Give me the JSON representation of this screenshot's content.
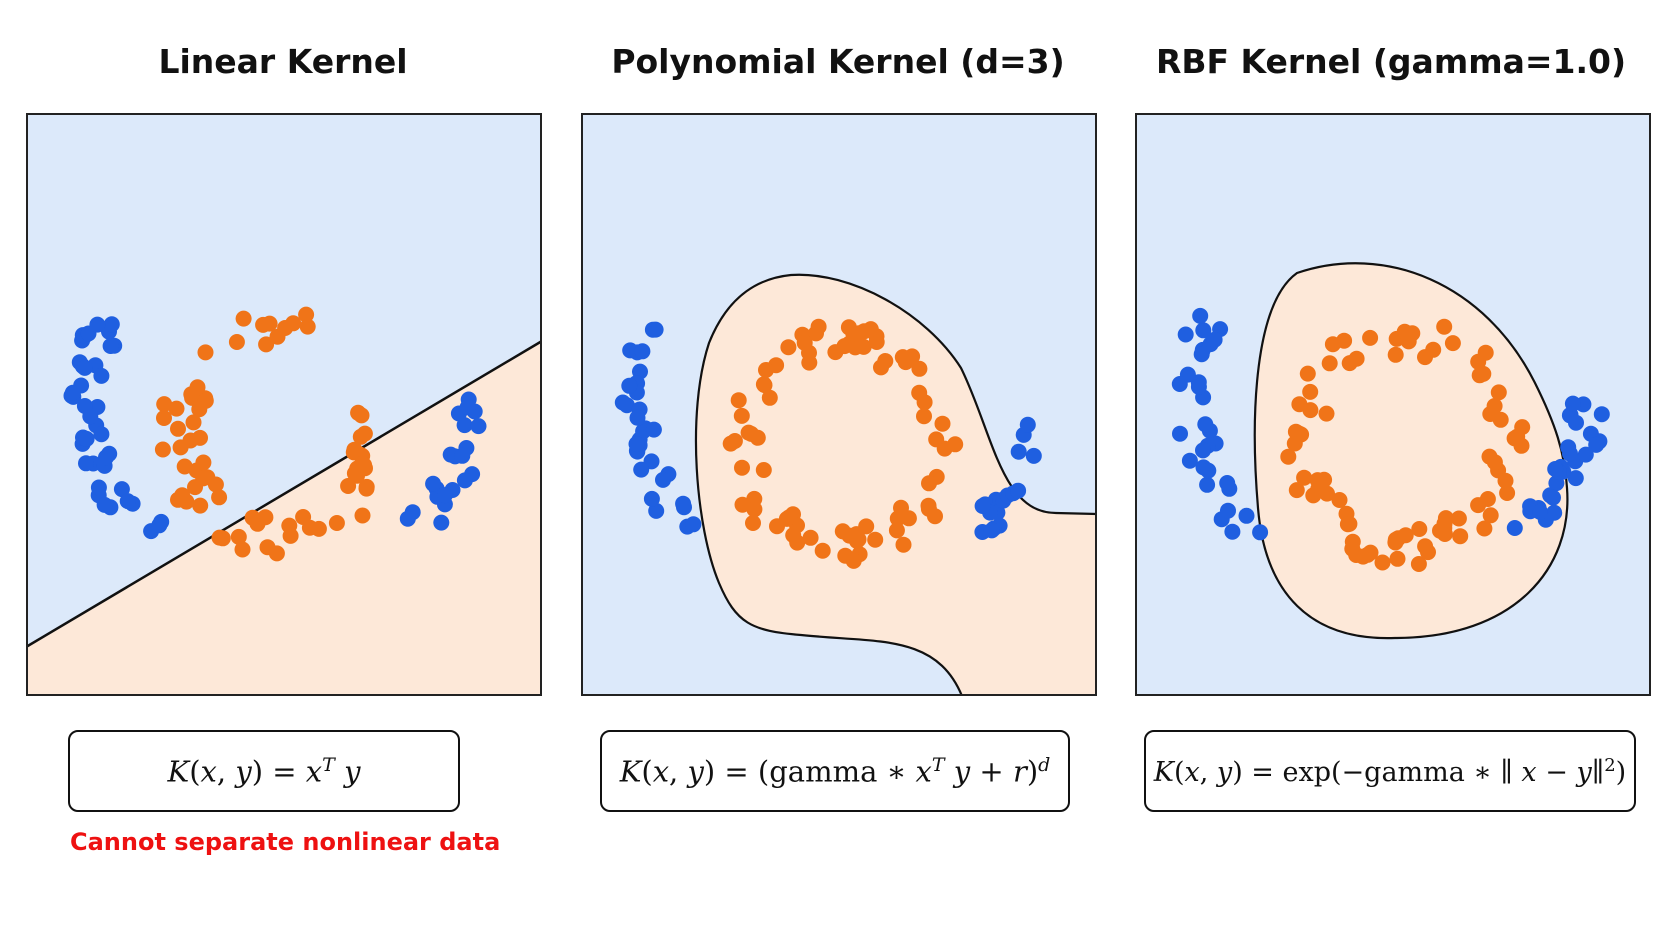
{
  "panels": [
    {
      "title": "Linear Kernel",
      "formula": "K(x, y) = x^T y",
      "note": "Cannot separate nonlinear data"
    },
    {
      "title": "Polynomial Kernel (d=3)",
      "formula": "K(x, y) = (gamma * x^T y + r)^d"
    },
    {
      "title": "RBF Kernel (gamma=1.0)",
      "formula": "K(x, y) = exp(−gamma * || x − y ||^2)"
    }
  ],
  "colors": {
    "class_outer": "#1f5fe0",
    "class_inner": "#f07418",
    "region_outer": "#dce9fa",
    "region_inner": "#fde8d8",
    "boundary": "#111111",
    "note": "#ee1111"
  }
}
